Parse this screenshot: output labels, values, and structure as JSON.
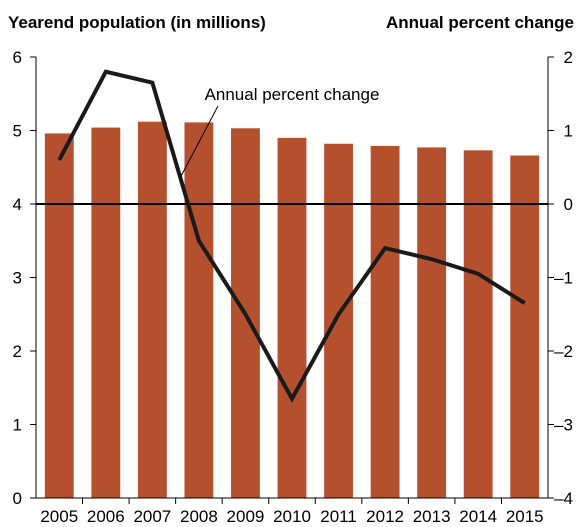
{
  "chart_data": {
    "type": "bar",
    "categories": [
      "2005",
      "2006",
      "2007",
      "2008",
      "2009",
      "2010",
      "2011",
      "2012",
      "2013",
      "2014",
      "2015"
    ],
    "series": [
      {
        "name": "Yearend population",
        "type": "bar",
        "axis": "left",
        "values": [
          4.96,
          5.04,
          5.12,
          5.11,
          5.03,
          4.9,
          4.82,
          4.79,
          4.77,
          4.73,
          4.66
        ],
        "color": "#b5502f"
      },
      {
        "name": "Annual percent change",
        "type": "line",
        "axis": "right",
        "values": [
          0.6,
          1.8,
          1.65,
          -0.5,
          -1.5,
          -2.65,
          -1.5,
          -0.6,
          -0.75,
          -0.95,
          -1.35
        ],
        "color": "#1a1a1a"
      }
    ],
    "left_axis": {
      "label": "Yearend population (in millions)",
      "ylim": [
        0,
        6
      ],
      "ticks": [
        "0",
        "1",
        "2",
        "3",
        "4",
        "5",
        "6"
      ]
    },
    "right_axis": {
      "label": "Annual percent change",
      "ylim": [
        -4,
        2
      ],
      "ticks": [
        "–4",
        "–3",
        "–2",
        "–1",
        "0",
        "1",
        "2"
      ],
      "tick_values": [
        -4,
        -3,
        -2,
        -1,
        0,
        1,
        2
      ]
    },
    "annotation": {
      "text": "Annual percent change"
    },
    "zero_line": {
      "value": 0,
      "axis": "right"
    },
    "grid": false
  }
}
